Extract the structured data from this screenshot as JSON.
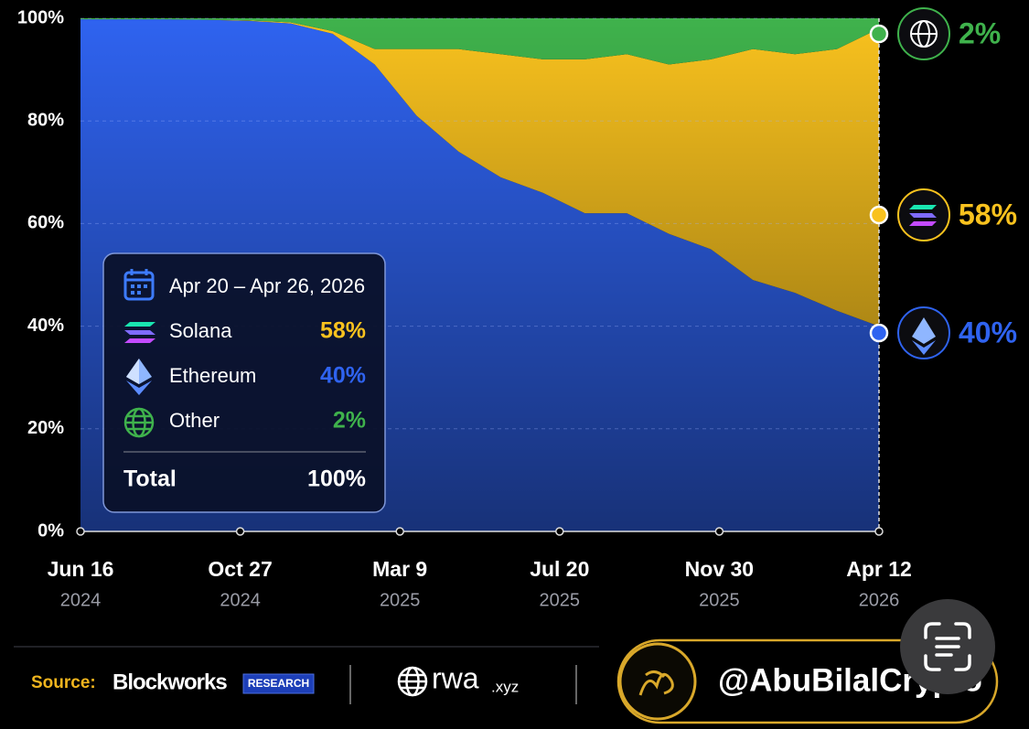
{
  "chart_data": {
    "type": "stacked_area",
    "x": [
      "2024-06-16",
      "2024-07-21",
      "2024-08-25",
      "2024-09-29",
      "2024-11-03",
      "2024-12-08",
      "2025-01-12",
      "2025-02-16",
      "2025-03-23",
      "2025-04-27",
      "2025-06-01",
      "2025-07-06",
      "2025-08-10",
      "2025-09-14",
      "2025-10-19",
      "2025-11-23",
      "2025-12-28",
      "2026-02-01",
      "2026-03-08",
      "2026-04-12"
    ],
    "series": [
      {
        "name": "Ethereum",
        "color": "#2f63f0",
        "end_label": "40%",
        "values": [
          99.8,
          99.8,
          99.8,
          99.7,
          99.5,
          99,
          97,
          91,
          81,
          74,
          69,
          66,
          62,
          62,
          58,
          55,
          49,
          46.5,
          43,
          40
        ]
      },
      {
        "name": "Solana",
        "color": "#f9c21e",
        "end_label": "58%",
        "values": [
          0,
          0,
          0,
          0,
          0.1,
          0.2,
          0.5,
          3,
          13,
          20,
          24,
          26,
          30,
          31,
          33,
          37,
          45,
          46.5,
          51,
          58
        ]
      },
      {
        "name": "Other",
        "color": "#3fb24c",
        "end_label": "2%",
        "values": [
          0.2,
          0.2,
          0.2,
          0.3,
          0.4,
          0.8,
          2.5,
          6,
          6,
          6,
          7,
          8,
          8,
          7,
          9,
          8,
          6,
          7,
          6,
          2
        ]
      }
    ],
    "xlim": [
      "2024-06-16",
      "2026-04-12"
    ],
    "xticks": [
      {
        "value": "2024-06-16",
        "label": "Jun 16",
        "year": "2024"
      },
      {
        "value": "2024-10-27",
        "label": "Oct 27",
        "year": "2024"
      },
      {
        "value": "2025-03-09",
        "label": "Mar 9",
        "year": "2025"
      },
      {
        "value": "2025-07-20",
        "label": "Jul 20",
        "year": "2025"
      },
      {
        "value": "2025-11-30",
        "label": "Nov 30",
        "year": "2025"
      },
      {
        "value": "2026-04-12",
        "label": "Apr 12",
        "year": "2026"
      }
    ],
    "ylim": [
      0,
      100
    ],
    "yticks": [
      {
        "value": 0,
        "label": "0%"
      },
      {
        "value": 20,
        "label": "20%"
      },
      {
        "value": 40,
        "label": "40%"
      },
      {
        "value": 60,
        "label": "60%"
      },
      {
        "value": 80,
        "label": "80%"
      },
      {
        "value": 100,
        "label": "100%"
      }
    ],
    "grid": true,
    "tooltip": {
      "title": "Apr 20 – Apr 26, 2026",
      "names": [
        "Solana",
        "Ethereum",
        "Other"
      ],
      "values": [
        58,
        40,
        2
      ],
      "value_labels": [
        "58%",
        "40%",
        "2%"
      ],
      "total_name": "Total",
      "total": 100,
      "total_label": "100%"
    }
  },
  "footer": {
    "source_label": "Source:",
    "source": "Blockworks",
    "source_tag": "RESEARCH",
    "partner": "rwa",
    "partner_suffix": ".xyz",
    "handle": "@AbuBilalCrypto"
  }
}
